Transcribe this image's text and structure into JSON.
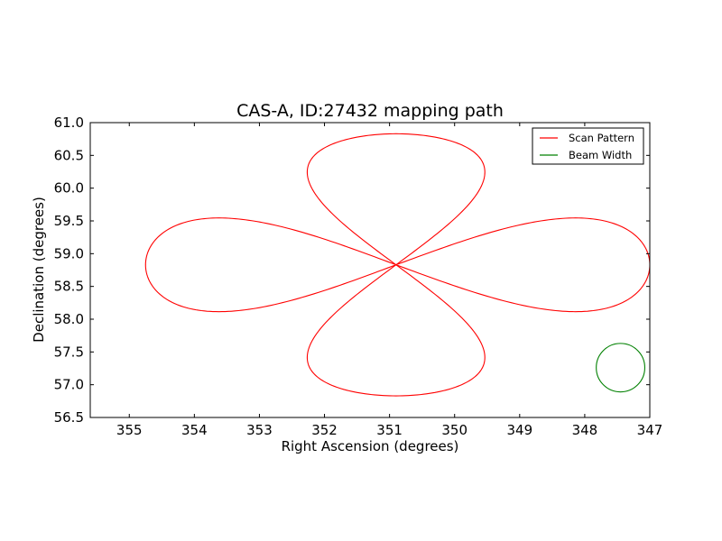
{
  "chart_data": {
    "type": "line",
    "title": "CAS-A, ID:27432 mapping path",
    "xlabel": "Right Ascension (degrees)",
    "ylabel": "Declination (degrees)",
    "xlim": [
      355.6,
      347.0
    ],
    "ylim": [
      56.5,
      61.0
    ],
    "x_inverted": true,
    "xticks": [
      355,
      354,
      353,
      352,
      351,
      350,
      349,
      348,
      347
    ],
    "xtick_labels": [
      "355",
      "354",
      "353",
      "352",
      "351",
      "350",
      "349",
      "348",
      "347"
    ],
    "yticks": [
      56.5,
      57.0,
      57.5,
      58.0,
      58.5,
      59.0,
      59.5,
      60.0,
      60.5,
      61.0
    ],
    "ytick_labels": [
      "56.5",
      "57.0",
      "57.5",
      "58.0",
      "58.5",
      "59.0",
      "59.5",
      "60.0",
      "60.5",
      "61.0"
    ],
    "grid": false,
    "legend_position": "top-right",
    "series": [
      {
        "name": "Scan Pattern",
        "color": "#ff0000",
        "shape": "four-petal rosette",
        "center": [
          350.9,
          58.83
        ],
        "petals": [
          {
            "direction": "north",
            "tip_dec": 60.83,
            "max_ra": 351.95,
            "min_ra": 349.85
          },
          {
            "direction": "south",
            "tip_dec": 56.83,
            "max_ra": 351.95,
            "min_ra": 349.85
          },
          {
            "direction": "east",
            "tip_ra": 354.75,
            "max_dec": 59.38,
            "min_dec": 58.28
          },
          {
            "direction": "west",
            "tip_ra": 347.0,
            "max_dec": 59.38,
            "min_dec": 58.28
          }
        ]
      },
      {
        "name": "Beam Width",
        "color": "#008000",
        "shape": "circle",
        "center": [
          347.45,
          57.26
        ],
        "radius_dec": 0.37
      }
    ]
  }
}
